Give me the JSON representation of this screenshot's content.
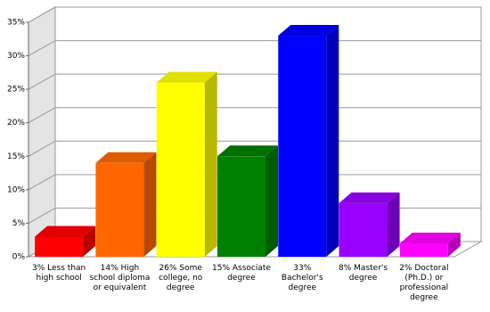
{
  "chart_data": {
    "type": "bar",
    "categories": [
      "3% Less than high school",
      "14% High school diploma or equivalent",
      "26% Some college, no degree",
      "15% Associate degree",
      "33% Bachelor's degree",
      "8% Master's degree",
      "2% Doctoral (Ph.D.) or professional degree"
    ],
    "values": [
      3,
      14,
      26,
      15,
      33,
      8,
      2
    ],
    "colors": [
      "#ff0000",
      "#ff6600",
      "#ffff00",
      "#008000",
      "#0000ff",
      "#9900ff",
      "#ff00ff"
    ],
    "ylim": [
      0,
      35
    ],
    "yticks": [
      {
        "value": 0,
        "label": "0%"
      },
      {
        "value": 5,
        "label": "5%"
      },
      {
        "value": 10,
        "label": "10%"
      },
      {
        "value": 15,
        "label": "15%"
      },
      {
        "value": 20,
        "label": "20%"
      },
      {
        "value": 25,
        "label": "25%"
      },
      {
        "value": 30,
        "label": "30%"
      },
      {
        "value": 35,
        "label": "35%"
      }
    ],
    "grid": true
  }
}
